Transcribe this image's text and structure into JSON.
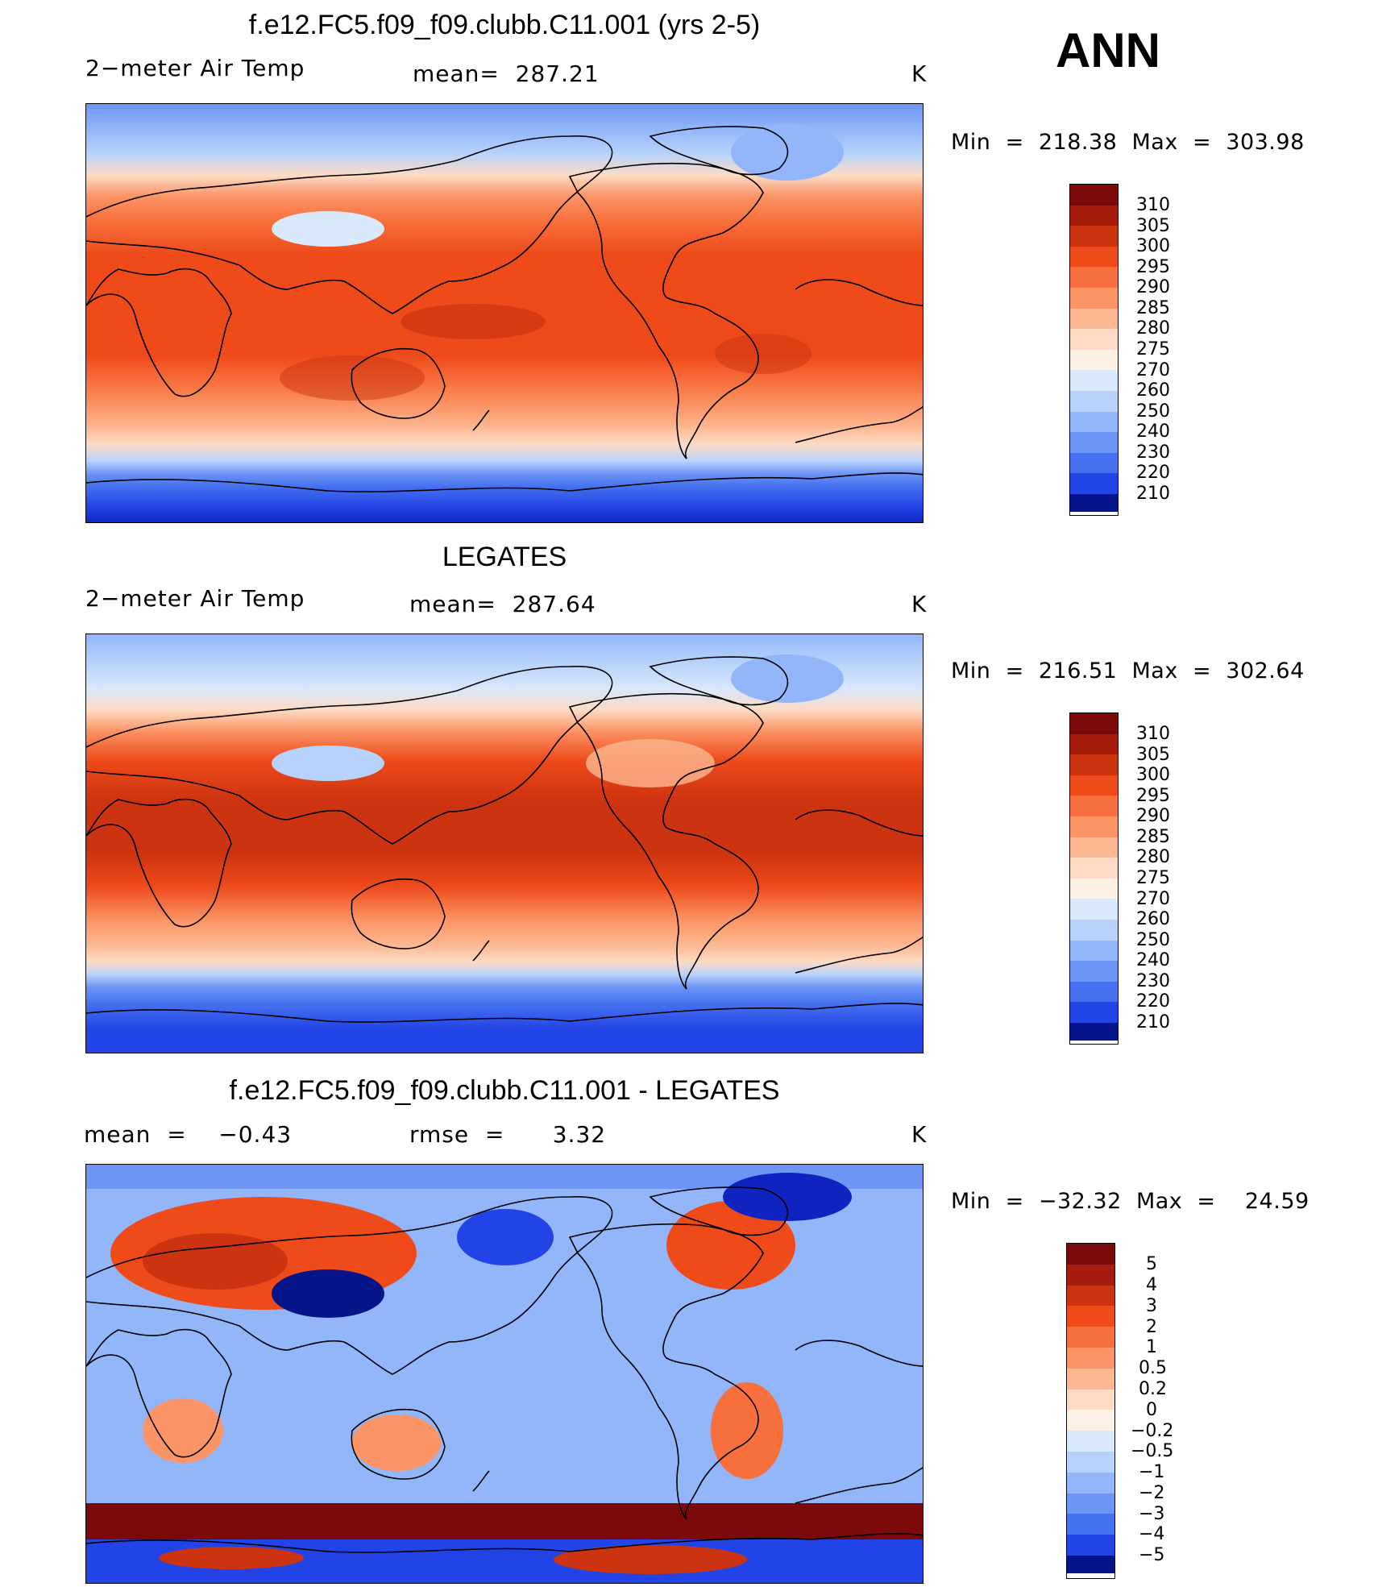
{
  "season": "ANN",
  "units": "K",
  "panels": [
    {
      "title": "f.e12.FC5.f09_f09.clubb.C11.001 (yrs 2-5)",
      "left_label": "2−meter Air Temp",
      "center_label": "mean=  287.21",
      "minmax": "Min  =  218.38  Max  =  303.98",
      "colorbar_labels": [
        "310",
        "305",
        "300",
        "295",
        "290",
        "285",
        "280",
        "275",
        "270",
        "260",
        "250",
        "240",
        "230",
        "220",
        "210"
      ]
    },
    {
      "title": "LEGATES",
      "left_label": "2−meter Air Temp",
      "center_label": "mean=  287.64",
      "minmax": "Min  =  216.51  Max  =  302.64",
      "colorbar_labels": [
        "310",
        "305",
        "300",
        "295",
        "290",
        "285",
        "280",
        "275",
        "270",
        "260",
        "250",
        "240",
        "230",
        "220",
        "210"
      ]
    },
    {
      "title": "f.e12.FC5.f09_f09.clubb.C11.001 - LEGATES",
      "left_label": "mean  =    −0.43",
      "center_label": "rmse  =      3.32",
      "minmax": "Min  =  −32.32  Max  =    24.59",
      "colorbar_labels": [
        "5",
        "4",
        "3",
        "2",
        "1",
        "0.5",
        "0.2",
        "0",
        "−0.2",
        "−0.5",
        "−1",
        "−2",
        "−3",
        "−4",
        "−5"
      ]
    }
  ],
  "colors": {
    "temp_scale": [
      "#7d0a0a",
      "#a51b0c",
      "#cc3310",
      "#ee4a1a",
      "#f76f3c",
      "#fb9466",
      "#fcb892",
      "#fddbc4",
      "#fdf0e4",
      "#d9e8fb",
      "#b8d3fb",
      "#92b6f9",
      "#6d95f5",
      "#4672ef",
      "#2244e6",
      "#0f23c0",
      "#06148a"
    ],
    "diff_scale": [
      "#7d0a0a",
      "#a51b0c",
      "#cc3310",
      "#ee4a1a",
      "#f76f3c",
      "#fb9466",
      "#fcb892",
      "#fddbc4",
      "#fdf0e4",
      "#d9e8fb",
      "#b8d3fb",
      "#92b6f9",
      "#6d95f5",
      "#4672ef",
      "#2244e6",
      "#0f23c0",
      "#06148a"
    ]
  }
}
